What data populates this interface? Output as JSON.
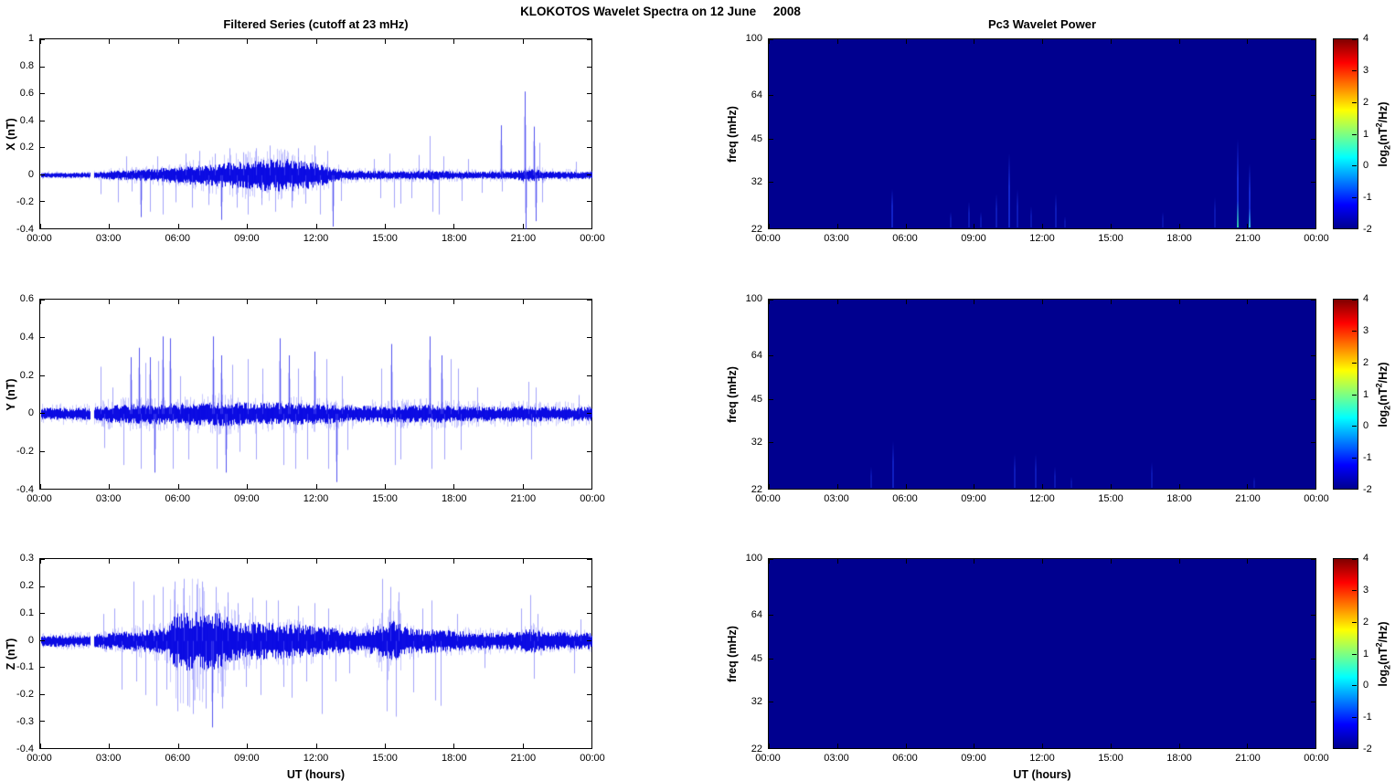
{
  "figure": {
    "title": "KLOKOTOS Wavelet Spectra on 12 June     2008"
  },
  "colors": {
    "line": "#0000e0",
    "line_light": "#5a5af5",
    "spike": "#4646f0",
    "spectro_bg": "#00008f",
    "event_base": "#1428d2",
    "axis": "#000000",
    "jet_stops": [
      {
        "c": "#00008f",
        "p": 0
      },
      {
        "c": "#0000ff",
        "p": 12.5
      },
      {
        "c": "#00ffff",
        "p": 37.5
      },
      {
        "c": "#ffff00",
        "p": 62.5
      },
      {
        "c": "#ff0000",
        "p": 87.5
      },
      {
        "c": "#800000",
        "p": 100
      }
    ]
  },
  "time_axis": {
    "label": "UT (hours)",
    "hours": [
      0,
      3,
      6,
      9,
      12,
      15,
      18,
      21,
      24
    ],
    "ticks": [
      "00:00",
      "03:00",
      "06:00",
      "09:00",
      "12:00",
      "15:00",
      "18:00",
      "21:00",
      "00:00"
    ],
    "xlim": [
      0,
      24
    ],
    "gap": [
      2.12,
      2.3
    ]
  },
  "colorbar": {
    "lim": [
      -2,
      4
    ],
    "ticks": [
      4,
      3,
      2,
      1,
      0,
      -1,
      -2
    ],
    "label_parts": {
      "prefix": "log",
      "sub": "2",
      "mid": "(nT",
      "sup": "2",
      "suffix": "/Hz)"
    }
  },
  "chart_data": [
    {
      "type": "line",
      "title": "Filtered Series (cutoff at 23 mHz)",
      "ylabel": "X (nT)",
      "ylim": [
        -0.4,
        1
      ],
      "yticks": [
        1,
        0.8,
        0.6,
        0.4,
        0.2,
        0,
        -0.2,
        -0.4
      ],
      "seed": 11,
      "light_k": 1.5,
      "envelope": [
        [
          0,
          0.018
        ],
        [
          2.1,
          0.018
        ],
        [
          2.4,
          0.02
        ],
        [
          3,
          0.03
        ],
        [
          4,
          0.035
        ],
        [
          5,
          0.045
        ],
        [
          6,
          0.055
        ],
        [
          7,
          0.07
        ],
        [
          8,
          0.085
        ],
        [
          9,
          0.1
        ],
        [
          9.8,
          0.11
        ],
        [
          10.8,
          0.11
        ],
        [
          11.5,
          0.1
        ],
        [
          12,
          0.08
        ],
        [
          12.7,
          0.05
        ],
        [
          13.3,
          0.035
        ],
        [
          14,
          0.03
        ],
        [
          16,
          0.028
        ],
        [
          17,
          0.035
        ],
        [
          17.4,
          0.03
        ],
        [
          19,
          0.025
        ],
        [
          20.5,
          0.028
        ],
        [
          21,
          0.045
        ],
        [
          21.6,
          0.04
        ],
        [
          22,
          0.028
        ],
        [
          24,
          0.025
        ]
      ],
      "spikes": [
        [
          2.6,
          -0.14
        ],
        [
          3.35,
          -0.2
        ],
        [
          3.7,
          0.14
        ],
        [
          3.95,
          -0.12
        ],
        [
          4.35,
          -0.31
        ],
        [
          4.75,
          -0.27
        ],
        [
          5.05,
          0.14
        ],
        [
          5.3,
          -0.29
        ],
        [
          5.85,
          -0.2
        ],
        [
          6.3,
          0.16
        ],
        [
          6.55,
          -0.24
        ],
        [
          6.9,
          0.18
        ],
        [
          7.3,
          -0.22
        ],
        [
          7.55,
          0.16
        ],
        [
          7.85,
          -0.33
        ],
        [
          8.2,
          0.2
        ],
        [
          8.5,
          -0.24
        ],
        [
          8.8,
          0.17
        ],
        [
          9.0,
          -0.29
        ],
        [
          9.35,
          0.2
        ],
        [
          9.6,
          -0.22
        ],
        [
          9.95,
          0.22
        ],
        [
          10.2,
          -0.27
        ],
        [
          10.6,
          0.19
        ],
        [
          10.9,
          -0.24
        ],
        [
          11.2,
          0.2
        ],
        [
          11.5,
          -0.21
        ],
        [
          11.9,
          0.22
        ],
        [
          12.15,
          -0.29
        ],
        [
          12.45,
          0.18
        ],
        [
          12.7,
          -0.38
        ],
        [
          13.05,
          -0.19
        ],
        [
          14.5,
          0.12
        ],
        [
          14.75,
          -0.17
        ],
        [
          15.15,
          0.16
        ],
        [
          15.35,
          -0.24
        ],
        [
          15.65,
          -0.21
        ],
        [
          16.1,
          -0.17
        ],
        [
          16.45,
          0.15
        ],
        [
          16.9,
          0.29
        ],
        [
          17.05,
          -0.27
        ],
        [
          17.3,
          -0.29
        ],
        [
          17.5,
          0.14
        ],
        [
          18.3,
          -0.19
        ],
        [
          18.6,
          0.12
        ],
        [
          19.2,
          -0.13
        ],
        [
          20.0,
          0.37
        ],
        [
          20.05,
          -0.12
        ],
        [
          21.05,
          0.62
        ],
        [
          21.1,
          -0.4
        ],
        [
          21.45,
          0.36
        ],
        [
          21.55,
          -0.34
        ],
        [
          21.7,
          0.24
        ],
        [
          21.8,
          -0.2
        ],
        [
          23.3,
          0.1
        ]
      ]
    },
    {
      "type": "line",
      "ylabel": "Y (nT)",
      "ylim": [
        -0.4,
        0.6
      ],
      "yticks": [
        0.6,
        0.4,
        0.2,
        0,
        -0.2,
        -0.4
      ],
      "seed": 22,
      "light_k": 1.6,
      "envelope": [
        [
          0,
          0.03
        ],
        [
          2.1,
          0.03
        ],
        [
          2.4,
          0.035
        ],
        [
          3,
          0.045
        ],
        [
          5,
          0.05
        ],
        [
          7,
          0.055
        ],
        [
          8,
          0.06
        ],
        [
          9,
          0.055
        ],
        [
          11,
          0.055
        ],
        [
          12,
          0.05
        ],
        [
          13,
          0.045
        ],
        [
          14,
          0.04
        ],
        [
          15,
          0.04
        ],
        [
          17,
          0.045
        ],
        [
          18,
          0.04
        ],
        [
          20,
          0.035
        ],
        [
          21,
          0.04
        ],
        [
          22,
          0.035
        ],
        [
          24,
          0.035
        ]
      ],
      "spikes": [
        [
          2.6,
          0.25
        ],
        [
          2.75,
          -0.18
        ],
        [
          3.1,
          0.14
        ],
        [
          3.6,
          -0.27
        ],
        [
          3.9,
          0.3
        ],
        [
          4.25,
          0.35
        ],
        [
          4.35,
          -0.29
        ],
        [
          4.55,
          0.27
        ],
        [
          4.75,
          0.3
        ],
        [
          4.95,
          -0.31
        ],
        [
          5.1,
          0.28
        ],
        [
          5.3,
          0.41
        ],
        [
          5.6,
          0.4
        ],
        [
          5.75,
          -0.29
        ],
        [
          6.05,
          0.2
        ],
        [
          6.4,
          -0.24
        ],
        [
          7.5,
          0.41
        ],
        [
          7.65,
          -0.29
        ],
        [
          7.85,
          0.31
        ],
        [
          8.05,
          -0.31
        ],
        [
          8.3,
          0.26
        ],
        [
          8.65,
          -0.2
        ],
        [
          9.0,
          0.29
        ],
        [
          9.35,
          -0.24
        ],
        [
          9.65,
          0.24
        ],
        [
          10.4,
          0.4
        ],
        [
          10.55,
          -0.27
        ],
        [
          10.8,
          0.31
        ],
        [
          11.05,
          -0.29
        ],
        [
          11.2,
          0.24
        ],
        [
          11.6,
          -0.24
        ],
        [
          11.9,
          0.33
        ],
        [
          12.4,
          0.29
        ],
        [
          12.5,
          -0.29
        ],
        [
          12.85,
          -0.36
        ],
        [
          13.1,
          0.2
        ],
        [
          13.35,
          -0.19
        ],
        [
          14.8,
          0.24
        ],
        [
          15.25,
          0.37
        ],
        [
          15.4,
          -0.27
        ],
        [
          15.65,
          -0.24
        ],
        [
          16.9,
          0.41
        ],
        [
          17.0,
          -0.29
        ],
        [
          17.45,
          0.31
        ],
        [
          17.55,
          -0.24
        ],
        [
          17.85,
          0.29
        ],
        [
          18.15,
          0.24
        ],
        [
          18.25,
          -0.19
        ],
        [
          19.0,
          0.14
        ],
        [
          21.2,
          0.17
        ],
        [
          21.35,
          -0.24
        ],
        [
          21.55,
          0.14
        ],
        [
          23.4,
          0.1
        ]
      ]
    },
    {
      "type": "line",
      "ylabel": "Z (nT)",
      "ylim": [
        -0.4,
        0.3
      ],
      "yticks": [
        0.3,
        0.2,
        0.1,
        0,
        -0.1,
        -0.2,
        -0.3,
        -0.4
      ],
      "seed": 33,
      "light_k": 1.4,
      "envelope": [
        [
          0,
          0.02
        ],
        [
          2.1,
          0.02
        ],
        [
          2.4,
          0.025
        ],
        [
          3,
          0.03
        ],
        [
          4,
          0.035
        ],
        [
          5,
          0.04
        ],
        [
          5.5,
          0.05
        ],
        [
          5.8,
          0.09
        ],
        [
          6.2,
          0.1
        ],
        [
          7,
          0.1
        ],
        [
          7.8,
          0.095
        ],
        [
          8.3,
          0.07
        ],
        [
          8.8,
          0.06
        ],
        [
          9.5,
          0.065
        ],
        [
          10.5,
          0.06
        ],
        [
          11.5,
          0.055
        ],
        [
          12.3,
          0.05
        ],
        [
          13,
          0.04
        ],
        [
          14,
          0.035
        ],
        [
          14.8,
          0.06
        ],
        [
          15.1,
          0.07
        ],
        [
          15.6,
          0.065
        ],
        [
          16,
          0.045
        ],
        [
          17,
          0.04
        ],
        [
          18,
          0.035
        ],
        [
          19,
          0.03
        ],
        [
          20.8,
          0.03
        ],
        [
          21.2,
          0.045
        ],
        [
          21.6,
          0.035
        ],
        [
          22.5,
          0.03
        ],
        [
          24,
          0.028
        ]
      ],
      "envelope_light": [
        [
          0,
          0.025
        ],
        [
          2.4,
          0.03
        ],
        [
          4,
          0.05
        ],
        [
          5.4,
          0.07
        ],
        [
          5.7,
          0.19
        ],
        [
          6.5,
          0.21
        ],
        [
          7.2,
          0.2
        ],
        [
          7.9,
          0.18
        ],
        [
          8.3,
          0.1
        ],
        [
          9,
          0.09
        ],
        [
          10,
          0.08
        ],
        [
          11,
          0.075
        ],
        [
          12,
          0.07
        ],
        [
          13,
          0.05
        ],
        [
          14,
          0.045
        ],
        [
          14.8,
          0.1
        ],
        [
          15.2,
          0.13
        ],
        [
          15.6,
          0.12
        ],
        [
          16,
          0.06
        ],
        [
          17,
          0.05
        ],
        [
          18,
          0.045
        ],
        [
          20.8,
          0.04
        ],
        [
          21.3,
          0.06
        ],
        [
          22,
          0.04
        ],
        [
          24,
          0.035
        ]
      ],
      "spikes": [
        [
          2.7,
          0.1
        ],
        [
          3.2,
          0.12
        ],
        [
          3.5,
          -0.18
        ],
        [
          4.0,
          0.22
        ],
        [
          4.15,
          -0.15
        ],
        [
          4.4,
          0.15
        ],
        [
          4.55,
          -0.2
        ],
        [
          4.9,
          0.17
        ],
        [
          5.0,
          -0.24
        ],
        [
          5.3,
          0.2
        ],
        [
          5.45,
          -0.18
        ],
        [
          5.8,
          0.22
        ],
        [
          5.95,
          -0.26
        ],
        [
          6.2,
          0.23
        ],
        [
          6.35,
          -0.24
        ],
        [
          6.6,
          -0.27
        ],
        [
          6.75,
          0.21
        ],
        [
          7.0,
          0.22
        ],
        [
          7.15,
          -0.25
        ],
        [
          7.45,
          -0.32
        ],
        [
          7.6,
          0.2
        ],
        [
          7.9,
          -0.25
        ],
        [
          8.1,
          0.18
        ],
        [
          8.55,
          0.14
        ],
        [
          8.9,
          -0.17
        ],
        [
          9.2,
          0.16
        ],
        [
          9.55,
          -0.2
        ],
        [
          9.8,
          0.15
        ],
        [
          10.3,
          0.15
        ],
        [
          10.55,
          -0.17
        ],
        [
          10.9,
          -0.21
        ],
        [
          11.2,
          0.13
        ],
        [
          11.55,
          -0.15
        ],
        [
          11.9,
          0.14
        ],
        [
          12.2,
          -0.27
        ],
        [
          12.5,
          0.12
        ],
        [
          12.8,
          -0.15
        ],
        [
          13.4,
          -0.12
        ],
        [
          14.85,
          0.23
        ],
        [
          15.05,
          -0.26
        ],
        [
          15.2,
          0.2
        ],
        [
          15.45,
          -0.28
        ],
        [
          15.55,
          0.18
        ],
        [
          16.2,
          -0.19
        ],
        [
          16.6,
          0.12
        ],
        [
          17.0,
          0.15
        ],
        [
          17.15,
          -0.22
        ],
        [
          17.4,
          -0.24
        ],
        [
          18.1,
          0.1
        ],
        [
          19.3,
          -0.1
        ],
        [
          20.9,
          0.12
        ],
        [
          21.3,
          0.17
        ],
        [
          21.45,
          -0.14
        ],
        [
          21.6,
          0.1
        ],
        [
          23.2,
          -0.12
        ],
        [
          23.5,
          0.08
        ]
      ],
      "xlabel": "UT (hours)"
    },
    {
      "type": "heatmap",
      "title": "Pc3 Wavelet Power",
      "ylabel": "freq (mHz)",
      "flim": [
        22,
        100
      ],
      "yticks": [
        100,
        64,
        45,
        32,
        22
      ],
      "clim": [
        -2,
        4
      ],
      "background_value": -2,
      "events": [
        {
          "t": 5.4,
          "f": 30,
          "a": 0.8
        },
        {
          "t": 8.0,
          "f": 25,
          "a": 0.5
        },
        {
          "t": 8.8,
          "f": 27,
          "a": 0.6
        },
        {
          "t": 9.3,
          "f": 25,
          "a": 0.5
        },
        {
          "t": 10.0,
          "f": 29,
          "a": 0.6
        },
        {
          "t": 10.55,
          "f": 40,
          "a": 0.9
        },
        {
          "t": 10.9,
          "f": 30,
          "a": 0.6
        },
        {
          "t": 11.5,
          "f": 26,
          "a": 0.5
        },
        {
          "t": 12.6,
          "f": 29,
          "a": 0.6
        },
        {
          "t": 13.0,
          "f": 24,
          "a": 0.4
        },
        {
          "t": 17.3,
          "f": 25,
          "a": 0.4
        },
        {
          "t": 19.6,
          "f": 28,
          "a": 0.5
        },
        {
          "t": 20.6,
          "f": 45,
          "a": 1,
          "glow": "#2cc0a4"
        },
        {
          "t": 21.1,
          "f": 37,
          "a": 1,
          "glow": "#2fb8dc"
        }
      ]
    },
    {
      "type": "heatmap",
      "ylabel": "freq (mHz)",
      "flim": [
        22,
        100
      ],
      "yticks": [
        100,
        64,
        45,
        32,
        22
      ],
      "clim": [
        -2,
        4
      ],
      "background_value": -2,
      "events": [
        {
          "t": 4.5,
          "f": 26,
          "a": 0.5
        },
        {
          "t": 5.45,
          "f": 32,
          "a": 0.7
        },
        {
          "t": 10.8,
          "f": 29,
          "a": 0.6
        },
        {
          "t": 11.7,
          "f": 29,
          "a": 0.6
        },
        {
          "t": 12.55,
          "f": 26,
          "a": 0.5
        },
        {
          "t": 13.3,
          "f": 24,
          "a": 0.4
        },
        {
          "t": 16.8,
          "f": 27,
          "a": 0.5
        },
        {
          "t": 21.3,
          "f": 24,
          "a": 0.4
        }
      ]
    },
    {
      "type": "heatmap",
      "ylabel": "freq (mHz)",
      "flim": [
        22,
        100
      ],
      "yticks": [
        100,
        64,
        45,
        32,
        22
      ],
      "clim": [
        -2,
        4
      ],
      "background_value": -2,
      "events": [],
      "xlabel": "UT (hours)"
    }
  ]
}
